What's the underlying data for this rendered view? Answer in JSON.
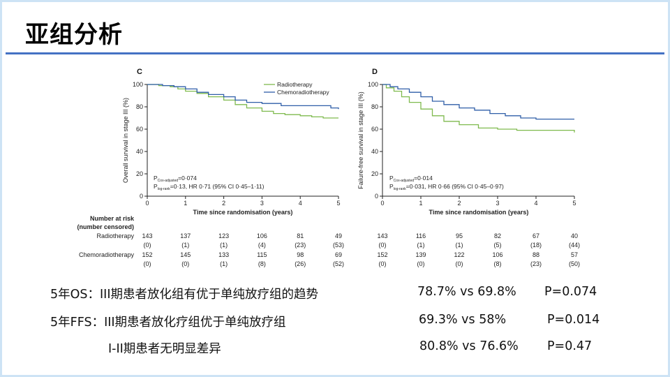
{
  "slide": {
    "title": "亚组分析"
  },
  "panels": [
    {
      "id": "C",
      "label": "C",
      "ylabel": "Overall survival in stage III (%)",
      "xlabel": "Time since randomisation (years)",
      "pval_line1_prefix": "P",
      "pval_line1_sub": "Cox-adjusted",
      "pval_line1_rest": "=0·074",
      "pval_line2_prefix": "P",
      "pval_line2_sub": "log-rank",
      "pval_line2_rest": "=0·13, HR 0·71 (95% CI 0·45–1·11)",
      "risk": {
        "Radiotherapy": {
          "at_risk": [
            "143",
            "137",
            "123",
            "106",
            "81",
            "49"
          ],
          "censored": [
            "(0)",
            "(1)",
            "(1)",
            "(4)",
            "(23)",
            "(53)"
          ]
        },
        "Chemoradiotherapy": {
          "at_risk": [
            "152",
            "145",
            "133",
            "115",
            "98",
            "69"
          ],
          "censored": [
            "(0)",
            "(0)",
            "(1)",
            "(8)",
            "(26)",
            "(52)"
          ]
        }
      }
    },
    {
      "id": "D",
      "label": "D",
      "ylabel": "Failure-free survival in stage III (%)",
      "xlabel": "Time since randomisation (years)",
      "pval_line1_prefix": "P",
      "pval_line1_sub": "Cox-adjusted",
      "pval_line1_rest": "=0·014",
      "pval_line2_prefix": "P",
      "pval_line2_sub": "log-rank",
      "pval_line2_rest": "=0·031, HR 0·66 (95% CI 0·45–0·97)",
      "risk": {
        "Radiotherapy": {
          "at_risk": [
            "143",
            "116",
            "95",
            "82",
            "67",
            "40"
          ],
          "censored": [
            "(0)",
            "(1)",
            "(1)",
            "(5)",
            "(18)",
            "(44)"
          ]
        },
        "Chemoradiotherapy": {
          "at_risk": [
            "152",
            "139",
            "122",
            "106",
            "88",
            "57"
          ],
          "censored": [
            "(0)",
            "(0)",
            "(0)",
            "(8)",
            "(23)",
            "(50)"
          ]
        }
      }
    }
  ],
  "risk_table": {
    "header_line1": "Number at risk",
    "header_line2": "(number censored)",
    "row1_label": "Radiotherapy",
    "row2_label": "Chemoradiotherapy"
  },
  "legend": {
    "radiotherapy": "Radiotherapy",
    "chemoradiotherapy": "Chemoradiotherapy"
  },
  "colors": {
    "radiotherapy": "#7fba4e",
    "chemoradiotherapy": "#2f5ea8",
    "title_rule": "#4472c4",
    "frame": "#cde3f5"
  },
  "chart_data": [
    {
      "type": "line",
      "title": "C",
      "xlabel": "Time since randomisation (years)",
      "ylabel": "Overall survival in stage III (%)",
      "xlim": [
        0,
        5
      ],
      "ylim": [
        0,
        100
      ],
      "xticks": [
        "0",
        "1",
        "2",
        "3",
        "4",
        "5"
      ],
      "yticks": [
        "0",
        "20",
        "40",
        "60",
        "80",
        "100"
      ],
      "legend_position": "top-right",
      "series": [
        {
          "name": "Radiotherapy",
          "x": [
            0,
            0.3,
            0.6,
            0.8,
            1.0,
            1.3,
            1.6,
            2.0,
            2.3,
            2.6,
            3.0,
            3.3,
            3.6,
            4.0,
            4.3,
            4.6,
            5.0
          ],
          "y": [
            100,
            99,
            98,
            96,
            94,
            92,
            89,
            86,
            82,
            79,
            76,
            74,
            73,
            72,
            71,
            70,
            70
          ]
        },
        {
          "name": "Chemoradiotherapy",
          "x": [
            0,
            0.4,
            0.7,
            1.0,
            1.3,
            1.6,
            2.0,
            2.3,
            2.6,
            3.0,
            3.5,
            4.0,
            4.5,
            4.8,
            5.0
          ],
          "y": [
            100,
            99,
            98,
            96,
            93,
            91,
            89,
            86,
            84,
            83,
            81,
            81,
            81,
            79,
            78
          ]
        }
      ]
    },
    {
      "type": "line",
      "title": "D",
      "xlabel": "Time since randomisation (years)",
      "ylabel": "Failure-free survival in stage III (%)",
      "xlim": [
        0,
        5
      ],
      "ylim": [
        0,
        100
      ],
      "xticks": [
        "0",
        "1",
        "2",
        "3",
        "4",
        "5"
      ],
      "yticks": [
        "0",
        "20",
        "40",
        "60",
        "80",
        "100"
      ],
      "legend_position": "top-right",
      "series": [
        {
          "name": "Radiotherapy",
          "x": [
            0,
            0.1,
            0.3,
            0.5,
            0.7,
            1.0,
            1.3,
            1.6,
            2.0,
            2.5,
            3.0,
            3.5,
            4.0,
            4.5,
            5.0
          ],
          "y": [
            100,
            97,
            94,
            89,
            84,
            78,
            72,
            67,
            64,
            61,
            60,
            59,
            59,
            59,
            57
          ]
        },
        {
          "name": "Chemoradiotherapy",
          "x": [
            0,
            0.2,
            0.4,
            0.7,
            1.0,
            1.3,
            1.6,
            2.0,
            2.4,
            2.8,
            3.2,
            3.6,
            4.0,
            4.5,
            5.0
          ],
          "y": [
            100,
            98,
            96,
            93,
            89,
            85,
            82,
            79,
            77,
            74,
            72,
            70,
            69,
            69,
            69
          ]
        }
      ]
    }
  ],
  "summary": [
    {
      "label": "5年OS：III期患者放化组有优于单纯放疗组的趋势",
      "values": "78.7% vs 69.8%",
      "p": "P=0.074"
    },
    {
      "label": "5年FFS：III期患者放化疗组优于单纯放疗组",
      "values": "69.3% vs 58%",
      "p": "P=0.014"
    },
    {
      "label": "I-II期患者无明显差异",
      "values": "80.8% vs 76.6%",
      "p": "P=0.47"
    }
  ]
}
